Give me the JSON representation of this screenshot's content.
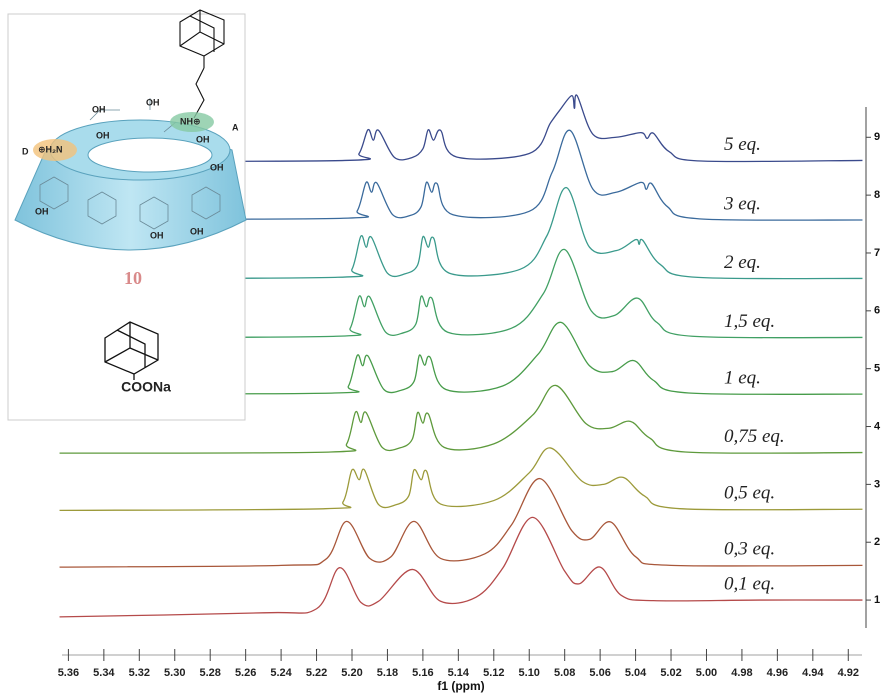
{
  "chart_data": {
    "type": "line",
    "x_label": "f1 (ppm)",
    "xlim": [
      5.367,
      4.91
    ],
    "ylim": [
      0.5,
      9.8
    ],
    "xticks": [
      5.36,
      5.34,
      5.32,
      {
        "value": 5.3,
        "label": "5.30"
      },
      5.28,
      5.26,
      5.24,
      5.22,
      {
        "value": 5.2,
        "label": "5.20"
      },
      5.18,
      5.16,
      5.14,
      5.12,
      {
        "value": 5.1,
        "label": "5.10"
      },
      5.08,
      5.06,
      5.04,
      5.02,
      {
        "value": 5.0,
        "label": "5.00"
      },
      4.98,
      4.96,
      4.94,
      4.92
    ],
    "yticks": [
      1,
      2,
      3,
      4,
      5,
      6,
      7,
      8,
      9
    ],
    "series": [
      {
        "name": "0,1 eq.",
        "color": "#b54a4a",
        "x": [
          5.365,
          5.25,
          5.22,
          5.207,
          5.195,
          5.185,
          5.166,
          5.15,
          5.13,
          5.115,
          5.098,
          5.08,
          5.072,
          5.06,
          5.048,
          5.03,
          4.97,
          4.912
        ],
        "values": [
          0.71,
          0.78,
          0.85,
          1.56,
          0.96,
          0.98,
          1.53,
          0.98,
          1.05,
          1.55,
          2.43,
          1.5,
          1.28,
          1.57,
          1.08,
          0.99,
          1.0,
          1.0
        ]
      },
      {
        "name": "0,3 eq.",
        "color": "#a8573a",
        "x": [
          5.365,
          5.24,
          5.215,
          5.203,
          5.19,
          5.178,
          5.165,
          5.15,
          5.125,
          5.11,
          5.094,
          5.076,
          5.066,
          5.054,
          5.04,
          5.02,
          4.912
        ],
        "values": [
          1.57,
          1.6,
          1.7,
          2.36,
          1.72,
          1.75,
          2.36,
          1.72,
          1.8,
          2.3,
          3.1,
          2.2,
          2.05,
          2.35,
          1.75,
          1.6,
          1.6
        ]
      },
      {
        "name": "0,5 eq.",
        "color": "#9c9a3a",
        "x": [
          5.365,
          5.215,
          5.205,
          5.2,
          5.196,
          5.193,
          5.185,
          5.175,
          5.168,
          5.165,
          5.161,
          5.158,
          5.15,
          5.12,
          5.1,
          5.088,
          5.07,
          5.058,
          5.047,
          5.035,
          5.015,
          4.912
        ],
        "values": [
          2.55,
          2.58,
          2.7,
          3.25,
          3.08,
          3.25,
          2.65,
          2.65,
          2.8,
          3.25,
          3.08,
          3.23,
          2.66,
          2.72,
          3.2,
          3.63,
          3.05,
          3.0,
          3.12,
          2.8,
          2.58,
          2.57
        ]
      },
      {
        "name": "0,75 eq.",
        "color": "#5e9a3c",
        "x": [
          5.365,
          5.212,
          5.203,
          5.198,
          5.195,
          5.192,
          5.183,
          5.173,
          5.166,
          5.163,
          5.16,
          5.157,
          5.148,
          5.12,
          5.098,
          5.085,
          5.068,
          5.055,
          5.043,
          5.032,
          5.012,
          4.912
        ],
        "values": [
          3.54,
          3.56,
          3.7,
          4.25,
          4.07,
          4.24,
          3.64,
          3.63,
          3.78,
          4.24,
          4.06,
          4.22,
          3.64,
          3.7,
          4.2,
          4.71,
          4.05,
          3.97,
          4.09,
          3.8,
          3.56,
          3.55
        ]
      },
      {
        "name": "1 eq.",
        "color": "#479c4a",
        "x": [
          5.365,
          5.21,
          5.202,
          5.197,
          5.194,
          5.191,
          5.182,
          5.172,
          5.165,
          5.162,
          5.159,
          5.156,
          5.147,
          5.115,
          5.095,
          5.082,
          5.066,
          5.053,
          5.041,
          5.03,
          5.01,
          4.912
        ],
        "values": [
          4.56,
          4.58,
          4.7,
          5.23,
          5.05,
          5.22,
          4.64,
          4.63,
          4.78,
          5.23,
          5.06,
          5.2,
          4.64,
          4.7,
          5.25,
          5.8,
          5.05,
          4.95,
          5.14,
          4.8,
          4.58,
          4.56
        ]
      },
      {
        "name": "1,5 eq.",
        "color": "#41a064",
        "x": [
          5.365,
          5.209,
          5.201,
          5.196,
          5.193,
          5.19,
          5.181,
          5.171,
          5.164,
          5.161,
          5.158,
          5.155,
          5.146,
          5.11,
          5.092,
          5.08,
          5.065,
          5.052,
          5.039,
          5.028,
          5.008,
          4.912
        ],
        "values": [
          5.54,
          5.56,
          5.7,
          6.25,
          6.07,
          6.24,
          5.63,
          5.62,
          5.77,
          6.25,
          6.07,
          6.22,
          5.63,
          5.7,
          6.3,
          7.06,
          6.0,
          5.92,
          6.22,
          5.8,
          5.56,
          5.54
        ]
      },
      {
        "name": "2 eq.",
        "color": "#3a9a8c",
        "x": [
          5.365,
          5.208,
          5.2,
          5.195,
          5.192,
          5.189,
          5.18,
          5.17,
          5.163,
          5.16,
          5.157,
          5.154,
          5.145,
          5.105,
          5.09,
          5.079,
          5.066,
          5.051,
          5.04,
          5.038,
          5.036,
          5.026,
          5.006,
          4.912
        ],
        "values": [
          6.56,
          6.58,
          6.72,
          7.29,
          7.1,
          7.27,
          6.65,
          6.64,
          6.79,
          7.28,
          7.1,
          7.26,
          6.65,
          6.72,
          7.3,
          8.13,
          7.1,
          7.04,
          7.23,
          7.15,
          7.22,
          6.8,
          6.58,
          6.56
        ]
      },
      {
        "name": "3 eq.",
        "color": "#3a6a9c",
        "x": [
          5.365,
          5.205,
          5.197,
          5.192,
          5.189,
          5.186,
          5.177,
          5.167,
          5.161,
          5.158,
          5.155,
          5.152,
          5.143,
          5.1,
          5.087,
          5.077,
          5.064,
          5.051,
          5.037,
          5.034,
          5.031,
          5.022,
          5.004,
          4.912
        ],
        "values": [
          7.58,
          7.6,
          7.73,
          8.22,
          8.05,
          8.21,
          7.66,
          7.65,
          7.8,
          8.22,
          8.05,
          8.2,
          7.66,
          7.72,
          8.4,
          9.12,
          8.1,
          8.05,
          8.22,
          8.1,
          8.2,
          7.8,
          7.59,
          7.57
        ]
      },
      {
        "name": "5 eq.",
        "color": "#3a4a8c",
        "x": [
          5.365,
          5.204,
          5.196,
          5.191,
          5.188,
          5.185,
          5.176,
          5.166,
          5.16,
          5.157,
          5.154,
          5.15,
          5.141,
          5.1,
          5.088,
          5.083,
          5.076,
          5.0745,
          5.073,
          5.064,
          5.051,
          5.037,
          5.0335,
          5.03,
          5.021,
          5.003,
          4.912
        ],
        "values": [
          8.58,
          8.6,
          8.72,
          9.13,
          8.95,
          9.12,
          8.65,
          8.65,
          8.8,
          9.13,
          8.95,
          9.12,
          8.66,
          8.72,
          9.25,
          9.46,
          9.72,
          9.5,
          9.72,
          9.05,
          9.0,
          9.08,
          8.98,
          9.07,
          8.75,
          8.59,
          8.6
        ]
      }
    ]
  },
  "inset": {
    "compound_number": "10",
    "guest": "COONa",
    "site_a": "A",
    "site_d": "D",
    "amine_a": "NH⊕",
    "amine_d": "⊕H₂N",
    "hydroxyls": [
      "OH",
      "OH",
      "OH",
      "OH",
      "OH",
      "OH",
      "OH",
      "OH"
    ]
  }
}
